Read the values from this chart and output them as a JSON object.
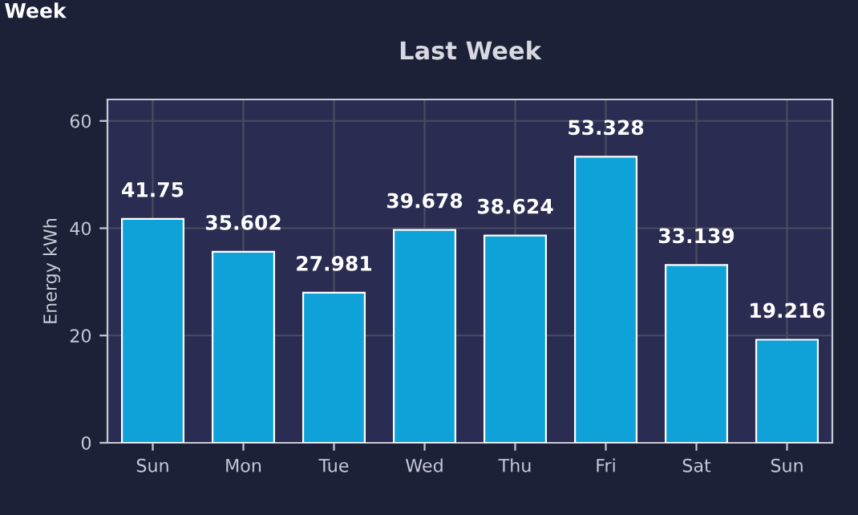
{
  "chart_data": {
    "type": "bar",
    "title": "Last Week",
    "ylabel": "Energy kWh",
    "annotations": [
      "Week"
    ],
    "categories": [
      "Sun",
      "Mon",
      "Tue",
      "Wed",
      "Thu",
      "Fri",
      "Sat",
      "Sun"
    ],
    "values": [
      41.75,
      35.602,
      27.981,
      39.678,
      38.624,
      53.328,
      33.139,
      19.216
    ],
    "color": "#0ea2d8",
    "ylim": [
      0,
      64
    ],
    "yticks": [
      0,
      20,
      40,
      60
    ],
    "grid": true,
    "data_labels": true
  }
}
